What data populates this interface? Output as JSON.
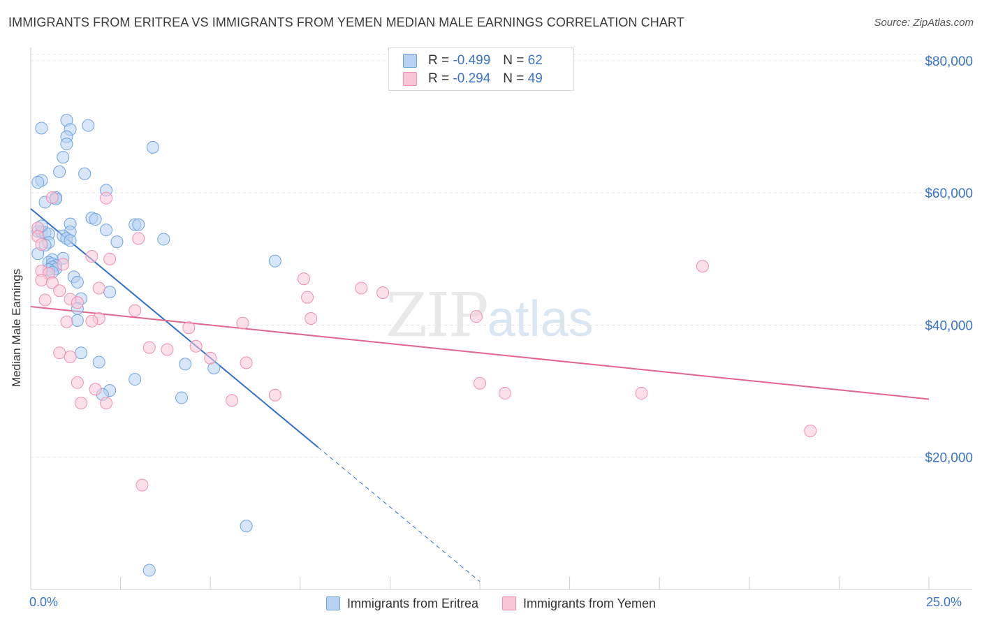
{
  "title": "IMMIGRANTS FROM ERITREA VS IMMIGRANTS FROM YEMEN MEDIAN MALE EARNINGS CORRELATION CHART",
  "source": "Source: ZipAtlas.com",
  "watermark": {
    "zip": "ZIP",
    "atlas": "atlas"
  },
  "colors": {
    "blue": "#6fa3e0",
    "blue_fill": "#b7d2f3",
    "blue_line": "#2f6fcf",
    "pink": "#f08fb0",
    "pink_fill": "#f9c6d7",
    "pink_line": "#e06690",
    "axis_text": "#3a74c8"
  },
  "legend_top": {
    "rows": [
      {
        "r_label": "R = ",
        "r_value": "-0.499",
        "n_label": "N = ",
        "n_value": "62"
      },
      {
        "r_label": "R = ",
        "r_value": "-0.294",
        "n_label": "N = ",
        "n_value": "49"
      }
    ]
  },
  "chart_data": {
    "type": "scatter",
    "title": "IMMIGRANTS FROM ERITREA VS IMMIGRANTS FROM YEMEN MEDIAN MALE EARNINGS CORRELATION CHART",
    "xlabel": "",
    "ylabel": "Median Male Earnings",
    "xlim": [
      0,
      25
    ],
    "ylim": [
      0,
      82000
    ],
    "x_tick_labels": [
      "0.0%",
      "25.0%"
    ],
    "y_ticks": [
      20000,
      40000,
      60000,
      80000
    ],
    "y_tick_labels": [
      "$20,000",
      "$40,000",
      "$60,000",
      "$80,000"
    ],
    "grid": true,
    "legend_position": "bottom",
    "series": [
      {
        "name": "Immigrants from Eritrea",
        "color": "blue",
        "points": [
          [
            0.3,
            69800
          ],
          [
            1.0,
            71000
          ],
          [
            1.6,
            70200
          ],
          [
            1.1,
            69600
          ],
          [
            1.0,
            68500
          ],
          [
            1.0,
            67400
          ],
          [
            3.4,
            66900
          ],
          [
            0.9,
            65400
          ],
          [
            0.8,
            63200
          ],
          [
            1.5,
            62900
          ],
          [
            0.3,
            61900
          ],
          [
            0.2,
            61600
          ],
          [
            2.1,
            60400
          ],
          [
            0.7,
            59300
          ],
          [
            0.4,
            58600
          ],
          [
            0.7,
            59100
          ],
          [
            1.7,
            56200
          ],
          [
            1.8,
            56000
          ],
          [
            2.9,
            55200
          ],
          [
            3.0,
            55200
          ],
          [
            1.1,
            55300
          ],
          [
            2.1,
            54400
          ],
          [
            0.2,
            54200
          ],
          [
            0.3,
            54100
          ],
          [
            1.1,
            54100
          ],
          [
            0.4,
            54000
          ],
          [
            0.5,
            53800
          ],
          [
            0.9,
            53500
          ],
          [
            1.0,
            53100
          ],
          [
            3.7,
            53000
          ],
          [
            1.1,
            52800
          ],
          [
            0.5,
            52500
          ],
          [
            2.4,
            52600
          ],
          [
            0.4,
            52100
          ],
          [
            0.2,
            50800
          ],
          [
            0.9,
            50100
          ],
          [
            0.6,
            49900
          ],
          [
            0.5,
            49500
          ],
          [
            0.6,
            49300
          ],
          [
            6.8,
            49700
          ],
          [
            0.7,
            49000
          ],
          [
            0.6,
            48800
          ],
          [
            0.7,
            48500
          ],
          [
            0.5,
            48400
          ],
          [
            0.6,
            48000
          ],
          [
            1.2,
            47300
          ],
          [
            1.3,
            46500
          ],
          [
            2.2,
            45000
          ],
          [
            1.4,
            44000
          ],
          [
            1.3,
            42500
          ],
          [
            1.3,
            40700
          ],
          [
            1.4,
            35800
          ],
          [
            1.9,
            34400
          ],
          [
            4.3,
            34100
          ],
          [
            5.1,
            33500
          ],
          [
            2.9,
            31800
          ],
          [
            2.2,
            30100
          ],
          [
            2.0,
            29500
          ],
          [
            4.2,
            29000
          ],
          [
            6.0,
            9600
          ],
          [
            3.3,
            2900
          ],
          [
            0.3,
            55000
          ]
        ]
      },
      {
        "name": "Immigrants from Yemen",
        "color": "pink",
        "points": [
          [
            2.1,
            59200
          ],
          [
            0.6,
            59300
          ],
          [
            0.2,
            54700
          ],
          [
            0.2,
            53400
          ],
          [
            3.0,
            53100
          ],
          [
            0.3,
            52200
          ],
          [
            1.7,
            50400
          ],
          [
            2.2,
            50000
          ],
          [
            0.9,
            49200
          ],
          [
            0.3,
            48200
          ],
          [
            0.5,
            47800
          ],
          [
            18.7,
            48900
          ],
          [
            7.6,
            47000
          ],
          [
            0.3,
            46800
          ],
          [
            0.6,
            46400
          ],
          [
            9.2,
            45600
          ],
          [
            0.8,
            45200
          ],
          [
            1.9,
            45600
          ],
          [
            9.8,
            44900
          ],
          [
            7.7,
            44200
          ],
          [
            0.4,
            43800
          ],
          [
            1.1,
            43900
          ],
          [
            1.3,
            43400
          ],
          [
            2.9,
            42200
          ],
          [
            12.4,
            41300
          ],
          [
            1.9,
            41000
          ],
          [
            7.8,
            41000
          ],
          [
            1.7,
            40600
          ],
          [
            1.0,
            40500
          ],
          [
            5.9,
            40300
          ],
          [
            4.4,
            39600
          ],
          [
            3.3,
            36600
          ],
          [
            3.8,
            36300
          ],
          [
            4.6,
            36800
          ],
          [
            0.8,
            35800
          ],
          [
            1.1,
            35200
          ],
          [
            5.0,
            35000
          ],
          [
            6.0,
            34300
          ],
          [
            1.3,
            31300
          ],
          [
            12.5,
            31200
          ],
          [
            13.2,
            29700
          ],
          [
            17.0,
            29700
          ],
          [
            1.8,
            30300
          ],
          [
            6.8,
            29400
          ],
          [
            5.6,
            28600
          ],
          [
            1.4,
            28200
          ],
          [
            2.1,
            28200
          ],
          [
            21.7,
            24000
          ],
          [
            3.1,
            15800
          ]
        ]
      }
    ],
    "trend_lines": [
      {
        "series": "Immigrants from Eritrea",
        "x1": 0.0,
        "y1": 57600,
        "x2": 8.0,
        "y2": 21500,
        "dashed_to_x": 12.5,
        "dashed_to_y": 1200
      },
      {
        "series": "Immigrants from Yemen",
        "x1": 0.0,
        "y1": 42800,
        "x2": 25.0,
        "y2": 28800
      }
    ]
  }
}
